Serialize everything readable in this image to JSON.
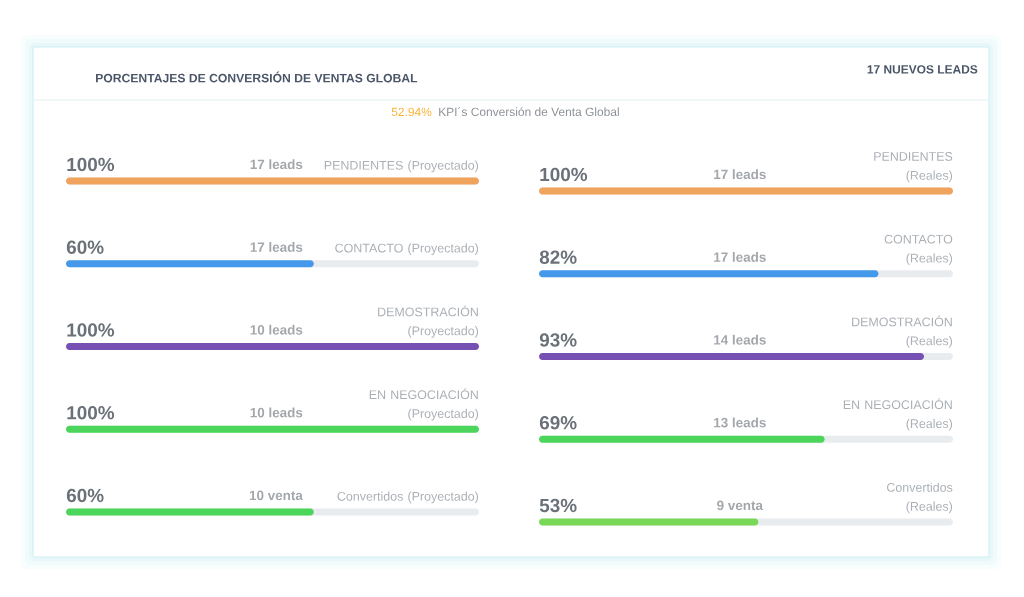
{
  "chart_data": [
    {
      "type": "other",
      "title": "PORCENTAJES DE CONVERSIÓN DE VENTAS GLOBAL",
      "annotations": [
        "17 NUEVOS LEADS",
        "52.94%",
        "KPI´s Conversión de Venta Global"
      ]
    },
    {
      "type": "bar",
      "orientation": "horizontal",
      "categories": [
        "PENDIENTES (Proyectado)",
        "CONTACTO (Proyectado)",
        "DEMOSTRACIÓN (Proyectado)",
        "EN NEGOCIACIÓN (Proyectado)",
        "Convertidos (Proyectado)"
      ],
      "values": [
        100,
        60,
        100,
        100,
        60
      ],
      "value_labels": [
        "100%",
        "60%",
        "100%",
        "100%",
        "60%"
      ],
      "colors": [
        "#f0a35c",
        "#4499eb",
        "#7650b2",
        "#4bd65b",
        "#4bd65b"
      ],
      "tick_labels": "y",
      "annotations": [
        "17 leads",
        "17 leads",
        "10 leads",
        "10 leads",
        "10 venta"
      ]
    },
    {
      "type": "bar",
      "orientation": "horizontal",
      "categories": [
        "PENDIENTES (Reales)",
        "CONTACTO (Reales)",
        "DEMOSTRACIÓN (Reales)",
        "EN NEGOCIACIÓN (Reales)",
        "Convertidos (Reales)"
      ],
      "values": [
        100,
        82,
        93,
        69,
        53
      ],
      "value_labels": [
        "100%",
        "82%",
        "93%",
        "69%",
        "53%"
      ],
      "colors": [
        "#f0a35c",
        "#4499eb",
        "#7650b2",
        "#4bd65b",
        "#7ad859"
      ],
      "tick_labels": "y",
      "annotations": [
        "17 leads",
        "17 leads",
        "14 leads",
        "13 leads",
        "9 venta"
      ]
    }
  ]
}
